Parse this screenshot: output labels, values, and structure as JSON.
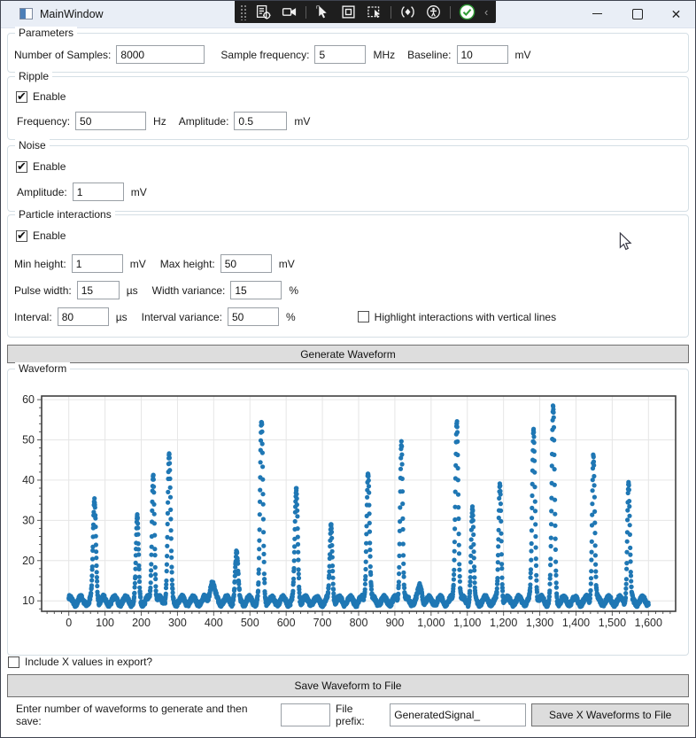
{
  "window": {
    "title": "MainWindow",
    "controls": {
      "minimize": "minimize",
      "maximize": "maximize",
      "close": "✕"
    }
  },
  "debug_toolbar": {
    "icons": [
      "drag-grip",
      "live-visual-tree",
      "screen-capture",
      "select-element",
      "display-layout-adornments",
      "track-focused-element",
      "hot-reload",
      "accessibility-checker",
      "hot-reload-status-ok",
      "collapse-chevron"
    ]
  },
  "parameters": {
    "title": "Parameters",
    "fields": [
      {
        "label": "Number of Samples:",
        "value": "8000",
        "unit": ""
      },
      {
        "label": "Sample frequency:",
        "value": "5",
        "unit": "MHz"
      },
      {
        "label": "Baseline:",
        "value": "10",
        "unit": "mV"
      }
    ]
  },
  "ripple": {
    "title": "Ripple",
    "enable_label": "Enable",
    "enabled": true,
    "fields": [
      {
        "label": "Frequency:",
        "value": "50",
        "unit": "Hz"
      },
      {
        "label": "Amplitude:",
        "value": "0.5",
        "unit": "mV"
      }
    ]
  },
  "noise": {
    "title": "Noise",
    "enable_label": "Enable",
    "enabled": true,
    "fields": [
      {
        "label": "Amplitude:",
        "value": "1",
        "unit": "mV"
      }
    ]
  },
  "particle": {
    "title": "Particle interactions",
    "enable_label": "Enable",
    "enabled": true,
    "rows": [
      [
        {
          "label": "Min height:",
          "value": "1",
          "unit": "mV"
        },
        {
          "label": "Max height:",
          "value": "50",
          "unit": "mV"
        }
      ],
      [
        {
          "label": "Pulse width:",
          "value": "15",
          "unit": "µs"
        },
        {
          "label": "Width variance:",
          "value": "15",
          "unit": "%"
        }
      ],
      [
        {
          "label": "Interval:",
          "value": "80",
          "unit": "µs"
        },
        {
          "label": "Interval variance:",
          "value": "50",
          "unit": "%"
        }
      ]
    ],
    "highlight_label": "Highlight interactions with vertical lines",
    "highlight_checked": false
  },
  "generate_button_label": "Generate Waveform",
  "waveform_group_title": "Waveform",
  "chart_data": {
    "type": "scatter",
    "title": "",
    "xlabel": "",
    "ylabel": "",
    "xlim": [
      -75,
      1675
    ],
    "ylim": [
      7.4,
      60.9
    ],
    "x_ticks": [
      0,
      100,
      200,
      300,
      400,
      500,
      600,
      700,
      800,
      900,
      1000,
      1100,
      1200,
      1300,
      1400,
      1500,
      1600
    ],
    "y_ticks": [
      10,
      20,
      30,
      40,
      50,
      60
    ],
    "x_minor_step": 20,
    "y_minor_step": 2,
    "grid": true,
    "marker_color": "#1f77b4",
    "baseline_mV": 10,
    "ripple_amplitude_mV": 0.95,
    "ripple_period_us": 31,
    "noise_amplitude_mV": 0.55,
    "samples_per_us": 2,
    "x_range_us": [
      0,
      1600
    ],
    "peaks": [
      {
        "x": 71,
        "y": 34.7,
        "w": 4.0
      },
      {
        "x": 189,
        "y": 30.2,
        "w": 3.5
      },
      {
        "x": 233,
        "y": 42.4,
        "w": 3.5
      },
      {
        "x": 277,
        "y": 46.1,
        "w": 4.0
      },
      {
        "x": 395,
        "y": 14.8,
        "w": 6.0
      },
      {
        "x": 463,
        "y": 21.5,
        "w": 4.0
      },
      {
        "x": 532,
        "y": 54.0,
        "w": 4.0
      },
      {
        "x": 628,
        "y": 37.5,
        "w": 4.0
      },
      {
        "x": 724,
        "y": 29.1,
        "w": 3.5
      },
      {
        "x": 826,
        "y": 42.8,
        "w": 4.0
      },
      {
        "x": 918,
        "y": 50.3,
        "w": 3.5
      },
      {
        "x": 970,
        "y": 13.6,
        "w": 5.0
      },
      {
        "x": 1071,
        "y": 55.4,
        "w": 4.0
      },
      {
        "x": 1114,
        "y": 32.4,
        "w": 3.5
      },
      {
        "x": 1190,
        "y": 39.4,
        "w": 3.5
      },
      {
        "x": 1283,
        "y": 52.9,
        "w": 4.0
      },
      {
        "x": 1337,
        "y": 57.5,
        "w": 4.0
      },
      {
        "x": 1448,
        "y": 46.9,
        "w": 3.5
      },
      {
        "x": 1545,
        "y": 39.3,
        "w": 3.5
      }
    ]
  },
  "export": {
    "include_x_label": "Include X values in export?",
    "include_x_checked": false,
    "save_button_label": "Save Waveform to File",
    "batch_label": "Enter number of waveforms to generate and then save:",
    "batch_count_value": "",
    "file_prefix_label": "File prefix:",
    "file_prefix_value": "GeneratedSignal_",
    "save_x_button_label": "Save X Waveforms to File"
  }
}
